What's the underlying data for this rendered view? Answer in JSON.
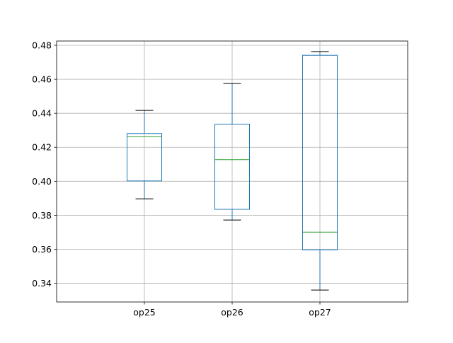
{
  "chart_data": {
    "type": "box",
    "title": "",
    "xlabel": "",
    "ylabel": "",
    "categories": [
      "op25",
      "op26",
      "op27"
    ],
    "boxes": [
      {
        "name": "op25",
        "whislo": 0.3897,
        "q1": 0.4002,
        "med": 0.4262,
        "q3": 0.4281,
        "whishi": 0.4417
      },
      {
        "name": "op26",
        "whislo": 0.3772,
        "q1": 0.3835,
        "med": 0.4127,
        "q3": 0.4336,
        "whishi": 0.4575
      },
      {
        "name": "op27",
        "whislo": 0.336,
        "q1": 0.3597,
        "med": 0.3701,
        "q3": 0.4741,
        "whishi": 0.4763
      }
    ],
    "ylim": [
      0.329,
      0.4825
    ],
    "yticks": [
      0.34,
      0.36,
      0.38,
      0.4,
      0.42,
      0.44,
      0.46,
      0.48
    ],
    "ytick_labels": [
      "0.34",
      "0.36",
      "0.38",
      "0.40",
      "0.42",
      "0.44",
      "0.46",
      "0.48"
    ],
    "grid": true,
    "colors": {
      "box": "#1f77b4",
      "median": "#2ca02c",
      "whisker_cap": "#000000",
      "grid": "#b0b0b0",
      "axes": "#000000"
    }
  }
}
